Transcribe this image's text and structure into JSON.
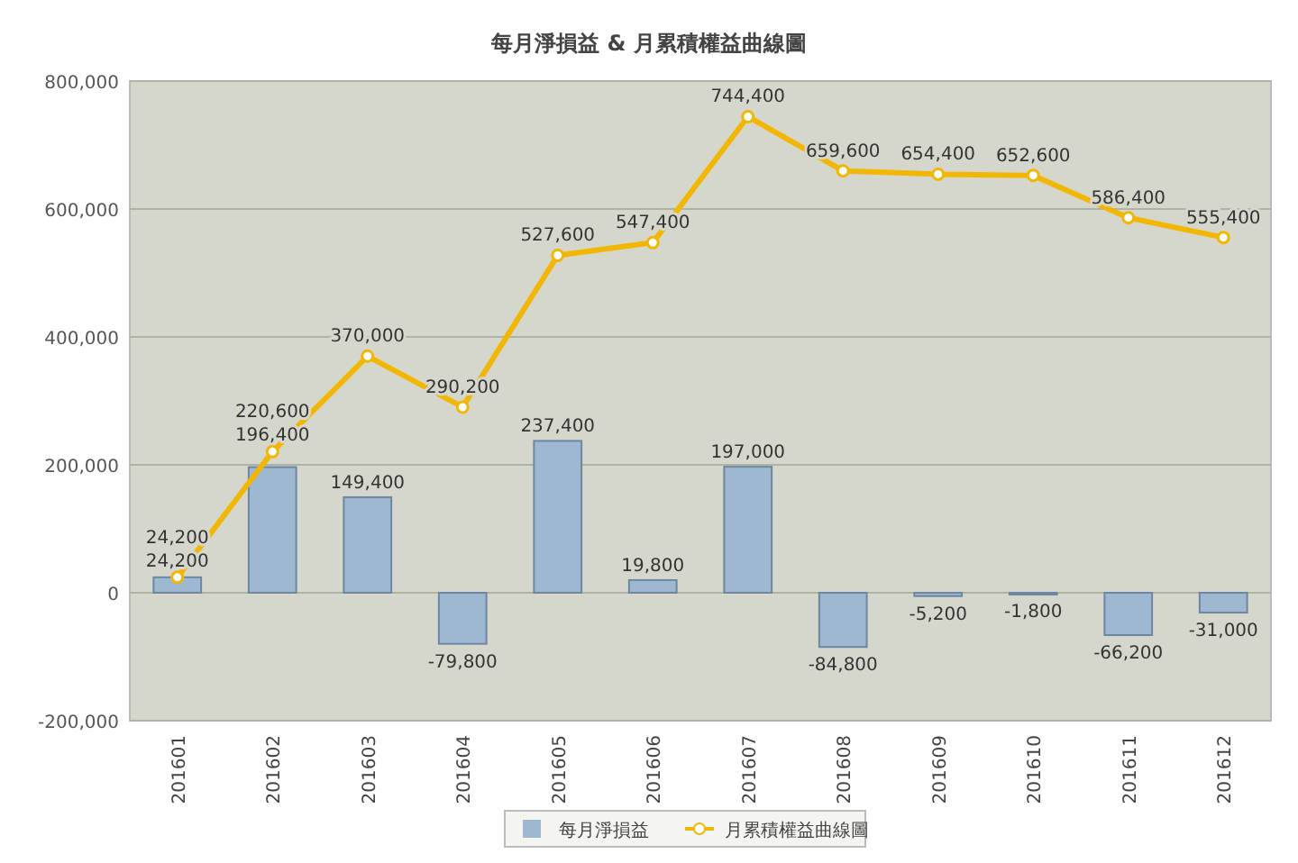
{
  "chart_data": {
    "type": "bar",
    "title": "每月淨損益 & 月累積權益曲線圖",
    "categories": [
      "201601",
      "201602",
      "201603",
      "201604",
      "201605",
      "201606",
      "201607",
      "201608",
      "201609",
      "201610",
      "201611",
      "201612"
    ],
    "series": [
      {
        "name": "每月淨損益",
        "color": "#9fb8d2",
        "values": [
          24200,
          196400,
          149400,
          -79800,
          237400,
          19800,
          197000,
          -84800,
          -5200,
          -1800,
          -66200,
          -31000
        ],
        "value_labels": [
          "24,200",
          "196,400",
          "149,400",
          "-79,800",
          "237,400",
          "19,800",
          "197,000",
          "-84,800",
          "-5,200",
          "-1,800",
          "-66,200",
          "-31,000"
        ]
      },
      {
        "name": "月累積權益曲線圖",
        "type": "line",
        "color": "#f2b705",
        "marker": "circle",
        "values": [
          24200,
          220600,
          370000,
          290200,
          527600,
          547400,
          744400,
          659600,
          654400,
          652600,
          586400,
          555400
        ],
        "value_labels": [
          "24,200",
          "220,600",
          "370,000",
          "290,200",
          "527,600",
          "547,400",
          "744,400",
          "659,600",
          "654,400",
          "652,600",
          "586,400",
          "555,400"
        ]
      }
    ],
    "ylim": [
      -200000,
      800000
    ],
    "yticks": [
      {
        "value": -200000,
        "label": "-200,000"
      },
      0,
      {
        "value": 200000,
        "label": "200,000"
      },
      {
        "value": 400000,
        "label": "400,000"
      },
      {
        "value": 600000,
        "label": "600,000"
      },
      {
        "value": 800000,
        "label": "800,000"
      }
    ],
    "grid": "y",
    "legend": "bottom",
    "data_labels": true
  }
}
